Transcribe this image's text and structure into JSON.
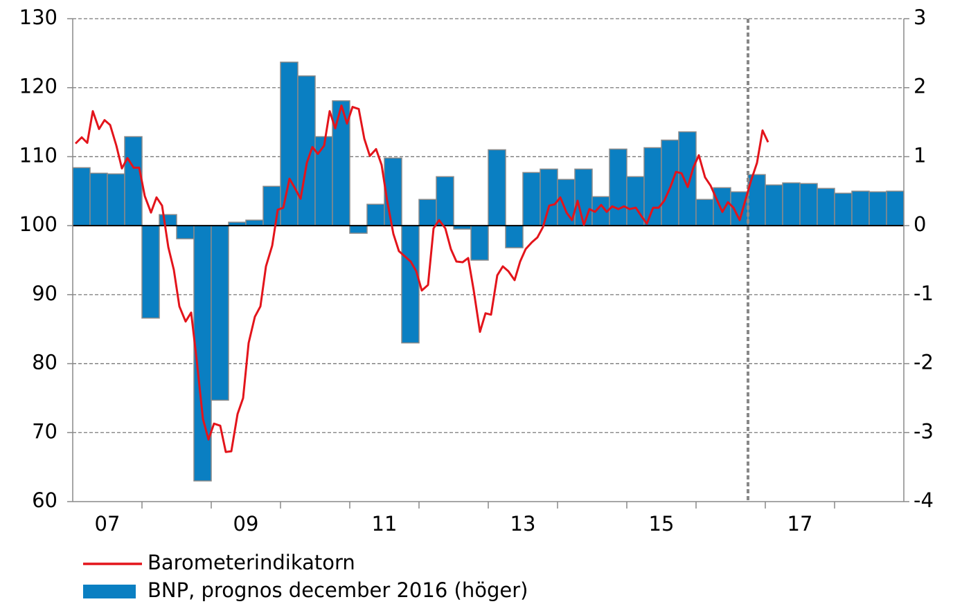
{
  "chart_data": {
    "type": "combo",
    "xlim": [
      2007,
      2019
    ],
    "xticks": [
      {
        "value": 2007.5,
        "label": "07"
      },
      {
        "value": 2009.5,
        "label": "09"
      },
      {
        "value": 2011.5,
        "label": "11"
      },
      {
        "value": 2013.5,
        "label": "13"
      },
      {
        "value": 2015.5,
        "label": "15"
      },
      {
        "value": 2017.5,
        "label": "17"
      }
    ],
    "xtick_marks": [
      2008,
      2009,
      2010,
      2011,
      2012,
      2013,
      2014,
      2015,
      2016,
      2017,
      2018
    ],
    "ylim": [
      60,
      130
    ],
    "yticks": [
      60,
      70,
      80,
      90,
      100,
      110,
      120,
      130
    ],
    "y2lim": [
      -4,
      3
    ],
    "y2ticks": [
      -4,
      -3,
      -2,
      -1,
      0,
      1,
      2,
      3
    ],
    "grid": true,
    "forecast_start": 2016.75,
    "series": [
      {
        "name": "Barometerindikatorn",
        "type": "line",
        "color": "#e3141b",
        "axis": "y",
        "x": [
          2007.04,
          2007.13,
          2007.21,
          2007.29,
          2007.38,
          2007.46,
          2007.54,
          2007.63,
          2007.71,
          2007.79,
          2007.88,
          2007.96,
          2008.04,
          2008.13,
          2008.21,
          2008.29,
          2008.38,
          2008.46,
          2008.54,
          2008.63,
          2008.71,
          2008.79,
          2008.88,
          2008.96,
          2009.04,
          2009.13,
          2009.21,
          2009.29,
          2009.38,
          2009.46,
          2009.54,
          2009.63,
          2009.71,
          2009.79,
          2009.88,
          2009.96,
          2010.04,
          2010.13,
          2010.21,
          2010.29,
          2010.38,
          2010.46,
          2010.54,
          2010.63,
          2010.71,
          2010.79,
          2010.88,
          2010.96,
          2011.04,
          2011.13,
          2011.21,
          2011.29,
          2011.38,
          2011.46,
          2011.54,
          2011.63,
          2011.71,
          2011.79,
          2011.88,
          2011.96,
          2012.04,
          2012.13,
          2012.21,
          2012.29,
          2012.38,
          2012.46,
          2012.54,
          2012.63,
          2012.71,
          2012.79,
          2012.88,
          2012.96,
          2013.04,
          2013.13,
          2013.21,
          2013.29,
          2013.38,
          2013.46,
          2013.54,
          2013.63,
          2013.71,
          2013.79,
          2013.88,
          2013.96,
          2014.04,
          2014.13,
          2014.21,
          2014.29,
          2014.38,
          2014.46,
          2014.54,
          2014.63,
          2014.71,
          2014.79,
          2014.88,
          2014.96,
          2015.04,
          2015.13,
          2015.21,
          2015.29,
          2015.38,
          2015.46,
          2015.54,
          2015.63,
          2015.71,
          2015.79,
          2015.88,
          2015.96,
          2016.04,
          2016.13,
          2016.21,
          2016.29,
          2016.38,
          2016.46,
          2016.54,
          2016.63,
          2016.71,
          2016.79,
          2016.88,
          2016.96,
          2017.04
        ],
        "values": [
          111.9,
          112.8,
          112,
          116.6,
          114,
          115.3,
          114.6,
          111.6,
          108.3,
          109.8,
          108.4,
          108.4,
          104.3,
          101.9,
          104.1,
          102.9,
          96.9,
          93.6,
          88.3,
          86.1,
          87.4,
          80.5,
          72,
          69,
          71.3,
          71,
          67.2,
          67.3,
          72.7,
          75,
          83,
          86.8,
          88.3,
          94.1,
          97.1,
          102.3,
          102.6,
          106.8,
          105.4,
          103.9,
          109.1,
          111.4,
          110.4,
          111.6,
          116.6,
          114.1,
          117.4,
          114.8,
          117.2,
          116.9,
          112.6,
          110.1,
          111.1,
          108.8,
          103.6,
          98.8,
          96.3,
          95.6,
          94.8,
          93.4,
          90.6,
          91.4,
          99.6,
          100.8,
          99.6,
          96.6,
          94.8,
          94.7,
          95.3,
          90.6,
          84.6,
          87.3,
          87.1,
          92.8,
          94.1,
          93.4,
          92.1,
          94.8,
          96.6,
          97.6,
          98.3,
          99.8,
          102.9,
          103.1,
          104.1,
          101.9,
          100.8,
          103.6,
          100.1,
          102.4,
          102,
          103,
          102,
          102.8,
          102.4,
          102.8,
          102.4,
          102.6,
          101.4,
          100.3,
          102.6,
          102.6,
          103.6,
          105.6,
          107.8,
          107.6,
          105.6,
          108.4,
          110.2,
          107,
          105.8,
          104,
          102,
          103.4,
          102.6,
          100.8,
          103.6,
          106.4,
          109.1,
          113.8,
          112.1
        ]
      },
      {
        "name": "BNP, prognos december 2016 (höger)",
        "type": "bar",
        "color": "#0a7fc2",
        "axis": "y2",
        "x": [
          2007.125,
          2007.375,
          2007.625,
          2007.875,
          2008.125,
          2008.375,
          2008.625,
          2008.875,
          2009.125,
          2009.375,
          2009.625,
          2009.875,
          2010.125,
          2010.375,
          2010.625,
          2010.875,
          2011.125,
          2011.375,
          2011.625,
          2011.875,
          2012.125,
          2012.375,
          2012.625,
          2012.875,
          2013.125,
          2013.375,
          2013.625,
          2013.875,
          2014.125,
          2014.375,
          2014.625,
          2014.875,
          2015.125,
          2015.375,
          2015.625,
          2015.875,
          2016.125,
          2016.375,
          2016.625,
          2016.875,
          2017.125,
          2017.375,
          2017.625,
          2017.875,
          2018.125,
          2018.375,
          2018.625,
          2018.875
        ],
        "values": [
          0.84,
          0.76,
          0.75,
          1.29,
          -1.34,
          0.16,
          -0.19,
          -3.7,
          -2.53,
          0.05,
          0.08,
          0.57,
          2.37,
          2.17,
          1.29,
          1.81,
          -0.11,
          0.31,
          0.98,
          -1.7,
          0.38,
          0.71,
          -0.05,
          -0.5,
          1.1,
          -0.32,
          0.77,
          0.82,
          0.67,
          0.82,
          0.42,
          1.11,
          0.71,
          1.13,
          1.24,
          1.36,
          0.38,
          0.55,
          0.49,
          0.74,
          0.59,
          0.62,
          0.61,
          0.54,
          0.47,
          0.5,
          0.49,
          0.5
        ]
      }
    ]
  }
}
